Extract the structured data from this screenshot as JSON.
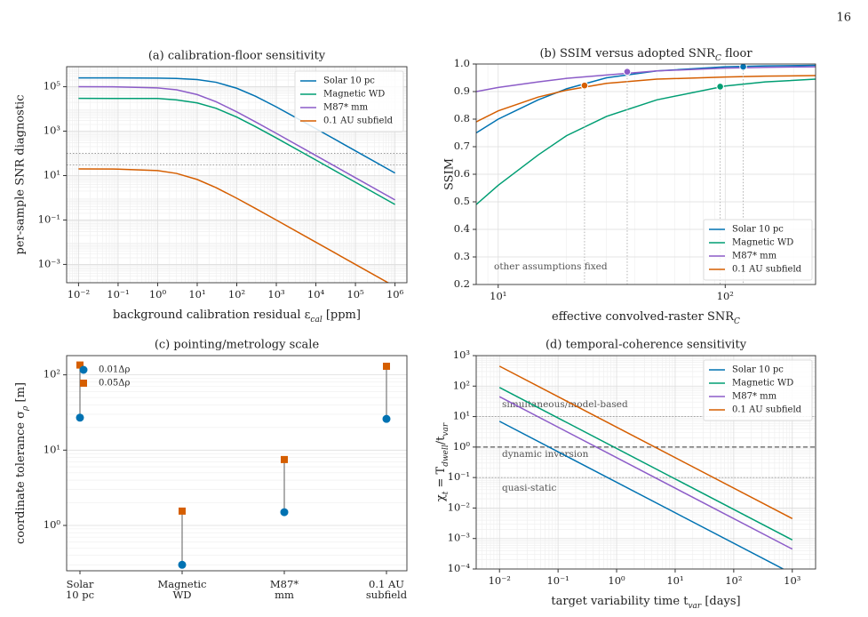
{
  "page_number": "16",
  "chart_data": [
    {
      "type": "line",
      "title": "(a) calibration-floor sensitivity",
      "xlabel": [
        "background calibration residual ε",
        "cal",
        " [ppm]"
      ],
      "ylabel": "per-sample SNR diagnostic",
      "xscale": "log",
      "yscale": "log",
      "xlim": [
        0.005,
        2000000
      ],
      "ylim": [
        0.00015,
        800000
      ],
      "xticks": [
        {
          "value": 0.01,
          "label": "10⁻²"
        },
        {
          "value": 0.1,
          "label": "10⁻¹"
        },
        {
          "value": 1,
          "label": "10⁰"
        },
        {
          "value": 10,
          "label": "10¹"
        },
        {
          "value": 100,
          "label": "10²"
        },
        {
          "value": 1000,
          "label": "10³"
        },
        {
          "value": 10000,
          "label": "10⁴"
        },
        {
          "value": 100000,
          "label": "10⁵"
        },
        {
          "value": 1000000,
          "label": "10⁶"
        }
      ],
      "yticks": [
        {
          "value": 0.001,
          "label": "10⁻³"
        },
        {
          "value": 0.1,
          "label": "10⁻¹"
        },
        {
          "value": 10,
          "label": "10¹"
        },
        {
          "value": 1000,
          "label": "10³"
        },
        {
          "value": 100000,
          "label": "10⁵"
        }
      ],
      "grid": true,
      "legend": "upper right",
      "hlines": [
        100,
        30
      ],
      "x": [
        0.01,
        0.1,
        1,
        3,
        10,
        30,
        100,
        300,
        1000,
        10000,
        100000,
        1000000
      ],
      "series": [
        {
          "name": "Solar 10 pc",
          "color": "#0072b2",
          "values": [
            250000,
            250000,
            245000,
            236000,
            210000,
            158500,
            85500,
            37000,
            12360,
            1293,
            130,
            13
          ]
        },
        {
          "name": "Magnetic WD",
          "color": "#009e73",
          "values": [
            30000,
            29800,
            29500,
            25400,
            18700,
            10700,
            4290,
            1580,
            493,
            50,
            5,
            0.5
          ]
        },
        {
          "name": "M87* mm",
          "color": "#8c5cc8",
          "values": [
            100000,
            98800,
            88900,
            72700,
            44400,
            21100,
            7410,
            2600,
            794,
            80,
            8,
            0.8
          ]
        },
        {
          "name": "0.1 AU subfield",
          "color": "#d55e00",
          "values": [
            20,
            19.6,
            16.7,
            12.5,
            6.67,
            2.86,
            0.952,
            0.328,
            0.0995,
            0.01,
            0.001,
            0.0001
          ]
        }
      ]
    },
    {
      "type": "line",
      "title": [
        "(b) SSIM versus adopted SNR",
        "C",
        " floor"
      ],
      "xlabel": [
        "effective convolved-raster SNR",
        "C"
      ],
      "ylabel": "SSIM",
      "xscale": "log",
      "xlim": [
        8,
        250
      ],
      "ylim": [
        0.2,
        1.0
      ],
      "xticks": [
        {
          "value": 10,
          "label": "10¹"
        },
        {
          "value": 100,
          "label": "10²"
        }
      ],
      "yticks": [
        0.2,
        0.3,
        0.4,
        0.5,
        0.6,
        0.7,
        0.8,
        0.9,
        {
          "value": 1,
          "label": "1.0"
        }
      ],
      "grid": true,
      "legend": "lower right",
      "annotations": [
        "other assumptions fixed"
      ],
      "x": [
        8,
        10,
        15,
        20,
        30,
        50,
        100,
        150,
        250
      ],
      "series": [
        {
          "name": "Solar 10 pc",
          "color": "#0072b2",
          "values": [
            0.75,
            0.8,
            0.87,
            0.91,
            0.95,
            0.975,
            0.99,
            0.993,
            0.995
          ],
          "marker": [
            120,
            0.99
          ]
        },
        {
          "name": "Magnetic WD",
          "color": "#009e73",
          "values": [
            0.49,
            0.56,
            0.67,
            0.74,
            0.81,
            0.87,
            0.92,
            0.935,
            0.945
          ],
          "marker": [
            95,
            0.918
          ]
        },
        {
          "name": "M87* mm",
          "color": "#8c5cc8",
          "values": [
            0.9,
            0.915,
            0.935,
            0.948,
            0.96,
            0.975,
            0.985,
            0.988,
            0.99
          ],
          "marker": [
            37,
            0.972
          ]
        },
        {
          "name": "0.1 AU subfield",
          "color": "#d55e00",
          "values": [
            0.79,
            0.83,
            0.88,
            0.905,
            0.93,
            0.945,
            0.953,
            0.956,
            0.958
          ],
          "marker": [
            24,
            0.922
          ]
        }
      ]
    },
    {
      "type": "dot",
      "title": "(c) pointing/metrology scale",
      "ylabel": [
        "coordinate tolerance σ",
        "ρ",
        " [m]"
      ],
      "yscale": "log",
      "ylim": [
        0.25,
        180
      ],
      "yticks": [
        {
          "value": 1,
          "label": "10⁰"
        },
        {
          "value": 10,
          "label": "10¹"
        },
        {
          "value": 100,
          "label": "10²"
        }
      ],
      "grid": true,
      "legend": "upper left",
      "categories": [
        [
          "Solar",
          "10 pc"
        ],
        [
          "Magnetic",
          "WD"
        ],
        [
          "M87*",
          "mm"
        ],
        [
          "0.1 AU",
          "subfield"
        ]
      ],
      "series": [
        {
          "name": "0.01Δρ",
          "color": "#0072b2",
          "marker": "circle",
          "values": [
            27,
            0.3,
            1.5,
            26
          ]
        },
        {
          "name": "0.05Δρ",
          "color": "#d55e00",
          "marker": "square",
          "values": [
            135,
            1.55,
            7.5,
            130
          ]
        }
      ]
    },
    {
      "type": "line",
      "title": "(d) temporal-coherence sensitivity",
      "xlabel": [
        "target variability time t",
        "var",
        " [days]"
      ],
      "ylabel": [
        "χ",
        "t",
        " = T",
        "dwell",
        "/t",
        "var"
      ],
      "xscale": "log",
      "yscale": "log",
      "xlim": [
        0.004,
        2500
      ],
      "ylim": [
        0.0001,
        1000
      ],
      "xticks": [
        {
          "value": 0.01,
          "label": "10⁻²"
        },
        {
          "value": 0.1,
          "label": "10⁻¹"
        },
        {
          "value": 1,
          "label": "10⁰"
        },
        {
          "value": 10,
          "label": "10¹"
        },
        {
          "value": 100,
          "label": "10²"
        },
        {
          "value": 1000,
          "label": "10³"
        }
      ],
      "yticks": [
        {
          "value": 0.0001,
          "label": "10⁻⁴"
        },
        {
          "value": 0.001,
          "label": "10⁻³"
        },
        {
          "value": 0.01,
          "label": "10⁻²"
        },
        {
          "value": 0.1,
          "label": "10⁻¹"
        },
        {
          "value": 1,
          "label": "10⁰"
        },
        {
          "value": 10,
          "label": "10¹"
        },
        {
          "value": 100,
          "label": "10²"
        },
        {
          "value": 1000,
          "label": "10³"
        }
      ],
      "grid": true,
      "legend": "upper right",
      "hlines": [
        10,
        1,
        0.1
      ],
      "annotations": [
        "simultaneous/model-based",
        "dynamic inversion",
        "quasi-static"
      ],
      "series": [
        {
          "name": "Solar 10 pc",
          "color": "#0072b2",
          "x": [
            0.01,
            700
          ],
          "values": [
            7,
            0.0001
          ]
        },
        {
          "name": "Magnetic WD",
          "color": "#009e73",
          "x": [
            0.01,
            1000
          ],
          "values": [
            90,
            0.0009
          ]
        },
        {
          "name": "M87* mm",
          "color": "#8c5cc8",
          "x": [
            0.01,
            1000
          ],
          "values": [
            45,
            0.00045
          ]
        },
        {
          "name": "0.1 AU subfield",
          "color": "#d55e00",
          "x": [
            0.01,
            1000
          ],
          "values": [
            450,
            0.0045
          ]
        }
      ]
    }
  ]
}
